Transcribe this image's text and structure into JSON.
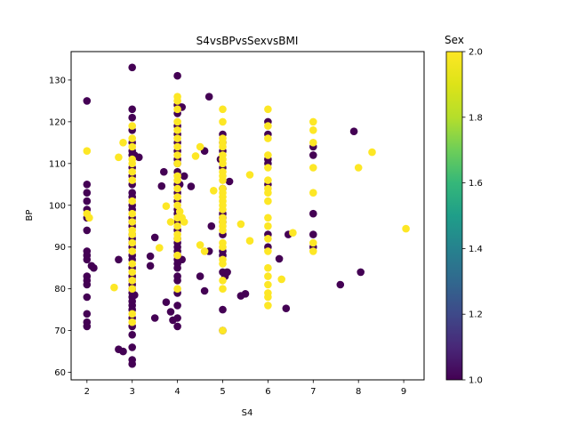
{
  "chart_data": {
    "type": "scatter",
    "title": "S4vsBPvsSexvsBMI",
    "xlabel": "S4",
    "ylabel": "BP",
    "xlim": [
      1.65,
      9.45
    ],
    "ylim": [
      58.2,
      136.8
    ],
    "x_ticks": [
      2,
      3,
      4,
      5,
      6,
      7,
      8,
      9
    ],
    "y_ticks": [
      60,
      70,
      80,
      90,
      100,
      110,
      120,
      130
    ],
    "colorbar": {
      "title": "Sex",
      "colormap": "viridis",
      "range": [
        1.0,
        2.0
      ],
      "ticks": [
        1.0,
        1.2,
        1.4,
        1.6,
        1.8,
        2.0
      ]
    },
    "colors": {
      "sex_1": "#440154",
      "sex_2": "#fde725"
    },
    "series": [
      {
        "sex": 1,
        "points": [
          [
            2,
            125
          ],
          [
            2,
            105
          ],
          [
            2,
            103
          ],
          [
            2,
            101
          ],
          [
            2,
            99
          ],
          [
            2,
            97
          ],
          [
            2,
            94
          ],
          [
            2,
            89
          ],
          [
            2,
            88
          ],
          [
            2,
            87
          ],
          [
            2,
            83
          ],
          [
            2,
            82
          ],
          [
            2,
            81
          ],
          [
            2,
            78
          ],
          [
            2,
            74
          ],
          [
            2,
            72
          ],
          [
            2,
            71
          ],
          [
            2.1,
            85.5
          ],
          [
            2.15,
            85
          ],
          [
            2.7,
            87
          ],
          [
            2.7,
            65.5
          ],
          [
            2.8,
            65
          ],
          [
            3,
            133
          ],
          [
            3,
            123
          ],
          [
            3,
            121
          ],
          [
            3,
            118
          ],
          [
            3,
            115
          ],
          [
            3,
            113
          ],
          [
            3,
            112
          ],
          [
            3,
            109
          ],
          [
            3,
            107
          ],
          [
            3,
            105
          ],
          [
            3,
            103
          ],
          [
            3,
            102
          ],
          [
            3,
            100
          ],
          [
            3,
            99
          ],
          [
            3,
            97
          ],
          [
            3,
            96
          ],
          [
            3,
            95
          ],
          [
            3,
            93
          ],
          [
            3,
            92
          ],
          [
            3,
            91
          ],
          [
            3,
            90
          ],
          [
            3,
            88
          ],
          [
            3,
            87
          ],
          [
            3,
            85
          ],
          [
            3,
            83
          ],
          [
            3,
            82
          ],
          [
            3,
            81
          ],
          [
            3,
            80
          ],
          [
            3,
            79
          ],
          [
            3,
            78
          ],
          [
            3,
            77
          ],
          [
            3,
            76
          ],
          [
            3,
            75
          ],
          [
            3,
            73
          ],
          [
            3,
            71
          ],
          [
            3,
            69
          ],
          [
            3,
            66
          ],
          [
            3,
            63
          ],
          [
            3,
            62
          ],
          [
            3.05,
            112
          ],
          [
            3.05,
            78.5
          ],
          [
            3.15,
            111.5
          ],
          [
            3.4,
            87.8
          ],
          [
            3.4,
            85.5
          ],
          [
            3.5,
            92.3
          ],
          [
            3.5,
            73
          ],
          [
            3.65,
            104.6
          ],
          [
            3.7,
            108
          ],
          [
            3.75,
            76.8
          ],
          [
            3.85,
            74.5
          ],
          [
            3.9,
            72.5
          ],
          [
            4,
            131
          ],
          [
            4,
            124
          ],
          [
            4,
            122
          ],
          [
            4,
            119
          ],
          [
            4,
            117
          ],
          [
            4,
            115
          ],
          [
            4,
            113
          ],
          [
            4,
            111
          ],
          [
            4,
            110
          ],
          [
            4,
            108
          ],
          [
            4,
            105
          ],
          [
            4,
            103
          ],
          [
            4,
            101
          ],
          [
            4,
            99
          ],
          [
            4,
            98
          ],
          [
            4,
            96
          ],
          [
            4,
            94
          ],
          [
            4,
            92
          ],
          [
            4,
            91
          ],
          [
            4,
            90
          ],
          [
            4,
            89
          ],
          [
            4,
            88
          ],
          [
            4,
            87
          ],
          [
            4,
            86
          ],
          [
            4,
            85
          ],
          [
            4,
            83
          ],
          [
            4,
            82
          ],
          [
            4,
            79
          ],
          [
            4,
            76
          ],
          [
            4,
            73
          ],
          [
            4,
            71
          ],
          [
            4.05,
            105
          ],
          [
            4.1,
            123.5
          ],
          [
            4.1,
            87
          ],
          [
            4.15,
            107
          ],
          [
            4.3,
            104.5
          ],
          [
            4.5,
            83
          ],
          [
            4.6,
            113
          ],
          [
            4.6,
            79.5
          ],
          [
            4.7,
            126
          ],
          [
            4.7,
            89
          ],
          [
            4.75,
            95
          ],
          [
            4.95,
            111
          ],
          [
            5,
            117
          ],
          [
            5,
            115
          ],
          [
            5,
            113
          ],
          [
            5,
            109
          ],
          [
            5,
            104
          ],
          [
            5,
            98
          ],
          [
            5,
            97
          ],
          [
            5,
            96
          ],
          [
            5,
            93
          ],
          [
            5,
            89
          ],
          [
            5,
            88
          ],
          [
            5,
            84
          ],
          [
            5,
            75
          ],
          [
            5,
            70
          ],
          [
            5.05,
            83
          ],
          [
            5.1,
            84
          ],
          [
            5.15,
            105.7
          ],
          [
            5.4,
            78.3
          ],
          [
            5.5,
            78.8
          ],
          [
            6,
            120
          ],
          [
            6,
            117
          ],
          [
            6,
            111
          ],
          [
            6,
            110
          ],
          [
            6,
            105
          ],
          [
            6,
            93
          ],
          [
            6,
            90
          ],
          [
            6.25,
            87.2
          ],
          [
            6.4,
            75.3
          ],
          [
            6.45,
            93
          ],
          [
            7,
            114
          ],
          [
            7,
            112
          ],
          [
            7,
            98
          ],
          [
            7,
            93
          ],
          [
            7,
            90
          ],
          [
            7.6,
            81
          ],
          [
            7.9,
            117.7
          ],
          [
            8.05,
            84
          ]
        ]
      },
      {
        "sex": 2,
        "points": [
          [
            2,
            113
          ],
          [
            2,
            98
          ],
          [
            2.05,
            97
          ],
          [
            2.6,
            80.3
          ],
          [
            2.7,
            111.5
          ],
          [
            2.8,
            115
          ],
          [
            3,
            119
          ],
          [
            3,
            116
          ],
          [
            3,
            114
          ],
          [
            3,
            111
          ],
          [
            3,
            110
          ],
          [
            3,
            108
          ],
          [
            3,
            106
          ],
          [
            3,
            101
          ],
          [
            3,
            98
          ],
          [
            3,
            96
          ],
          [
            3,
            94
          ],
          [
            3,
            93
          ],
          [
            3,
            91
          ],
          [
            3,
            89
          ],
          [
            3,
            86
          ],
          [
            3,
            84
          ],
          [
            3,
            82
          ],
          [
            3,
            80
          ],
          [
            3,
            74
          ],
          [
            3,
            72
          ],
          [
            3.6,
            89.8
          ],
          [
            3.75,
            99.8
          ],
          [
            3.85,
            96
          ],
          [
            4,
            126
          ],
          [
            4,
            125
          ],
          [
            4,
            123
          ],
          [
            4,
            120
          ],
          [
            4,
            118
          ],
          [
            4,
            116
          ],
          [
            4,
            114
          ],
          [
            4,
            112
          ],
          [
            4,
            110
          ],
          [
            4,
            107
          ],
          [
            4,
            106
          ],
          [
            4,
            104
          ],
          [
            4,
            102
          ],
          [
            4,
            100
          ],
          [
            4,
            97
          ],
          [
            4,
            95
          ],
          [
            4,
            93
          ],
          [
            4,
            92
          ],
          [
            4,
            88
          ],
          [
            4,
            80
          ],
          [
            4.05,
            98.5
          ],
          [
            4.1,
            97
          ],
          [
            4.15,
            96
          ],
          [
            4.4,
            111.8
          ],
          [
            4.5,
            90.5
          ],
          [
            4.5,
            114
          ],
          [
            4.6,
            89
          ],
          [
            4.8,
            103.5
          ],
          [
            5,
            123
          ],
          [
            5,
            120
          ],
          [
            5,
            116
          ],
          [
            5,
            115
          ],
          [
            5,
            114
          ],
          [
            5,
            112
          ],
          [
            5,
            111
          ],
          [
            5,
            110
          ],
          [
            5,
            108
          ],
          [
            5,
            107
          ],
          [
            5,
            106
          ],
          [
            5,
            104
          ],
          [
            5,
            103
          ],
          [
            5,
            102
          ],
          [
            5,
            101
          ],
          [
            5,
            100
          ],
          [
            5,
            99
          ],
          [
            5,
            97
          ],
          [
            5,
            96
          ],
          [
            5,
            95
          ],
          [
            5,
            94
          ],
          [
            5,
            91
          ],
          [
            5,
            90
          ],
          [
            5,
            87
          ],
          [
            5,
            86
          ],
          [
            5,
            82
          ],
          [
            5,
            80
          ],
          [
            5,
            70
          ],
          [
            5.4,
            95.5
          ],
          [
            5.6,
            107.3
          ],
          [
            5.6,
            91.5
          ],
          [
            6,
            123
          ],
          [
            6,
            119
          ],
          [
            6,
            116
          ],
          [
            6,
            112
          ],
          [
            6,
            109
          ],
          [
            6,
            106
          ],
          [
            6,
            104
          ],
          [
            6,
            103
          ],
          [
            6,
            101
          ],
          [
            6,
            97
          ],
          [
            6,
            95
          ],
          [
            6,
            92
          ],
          [
            6,
            89
          ],
          [
            6,
            85
          ],
          [
            6,
            83
          ],
          [
            6,
            81
          ],
          [
            6,
            79
          ],
          [
            6,
            78
          ],
          [
            6,
            76
          ],
          [
            6.3,
            82.3
          ],
          [
            6.55,
            93.4
          ],
          [
            7,
            120
          ],
          [
            7,
            118
          ],
          [
            7,
            115
          ],
          [
            7,
            109
          ],
          [
            7,
            103
          ],
          [
            7,
            91
          ],
          [
            7,
            89
          ],
          [
            8,
            109
          ],
          [
            8.3,
            112.7
          ],
          [
            9.05,
            94.4
          ]
        ]
      }
    ]
  }
}
